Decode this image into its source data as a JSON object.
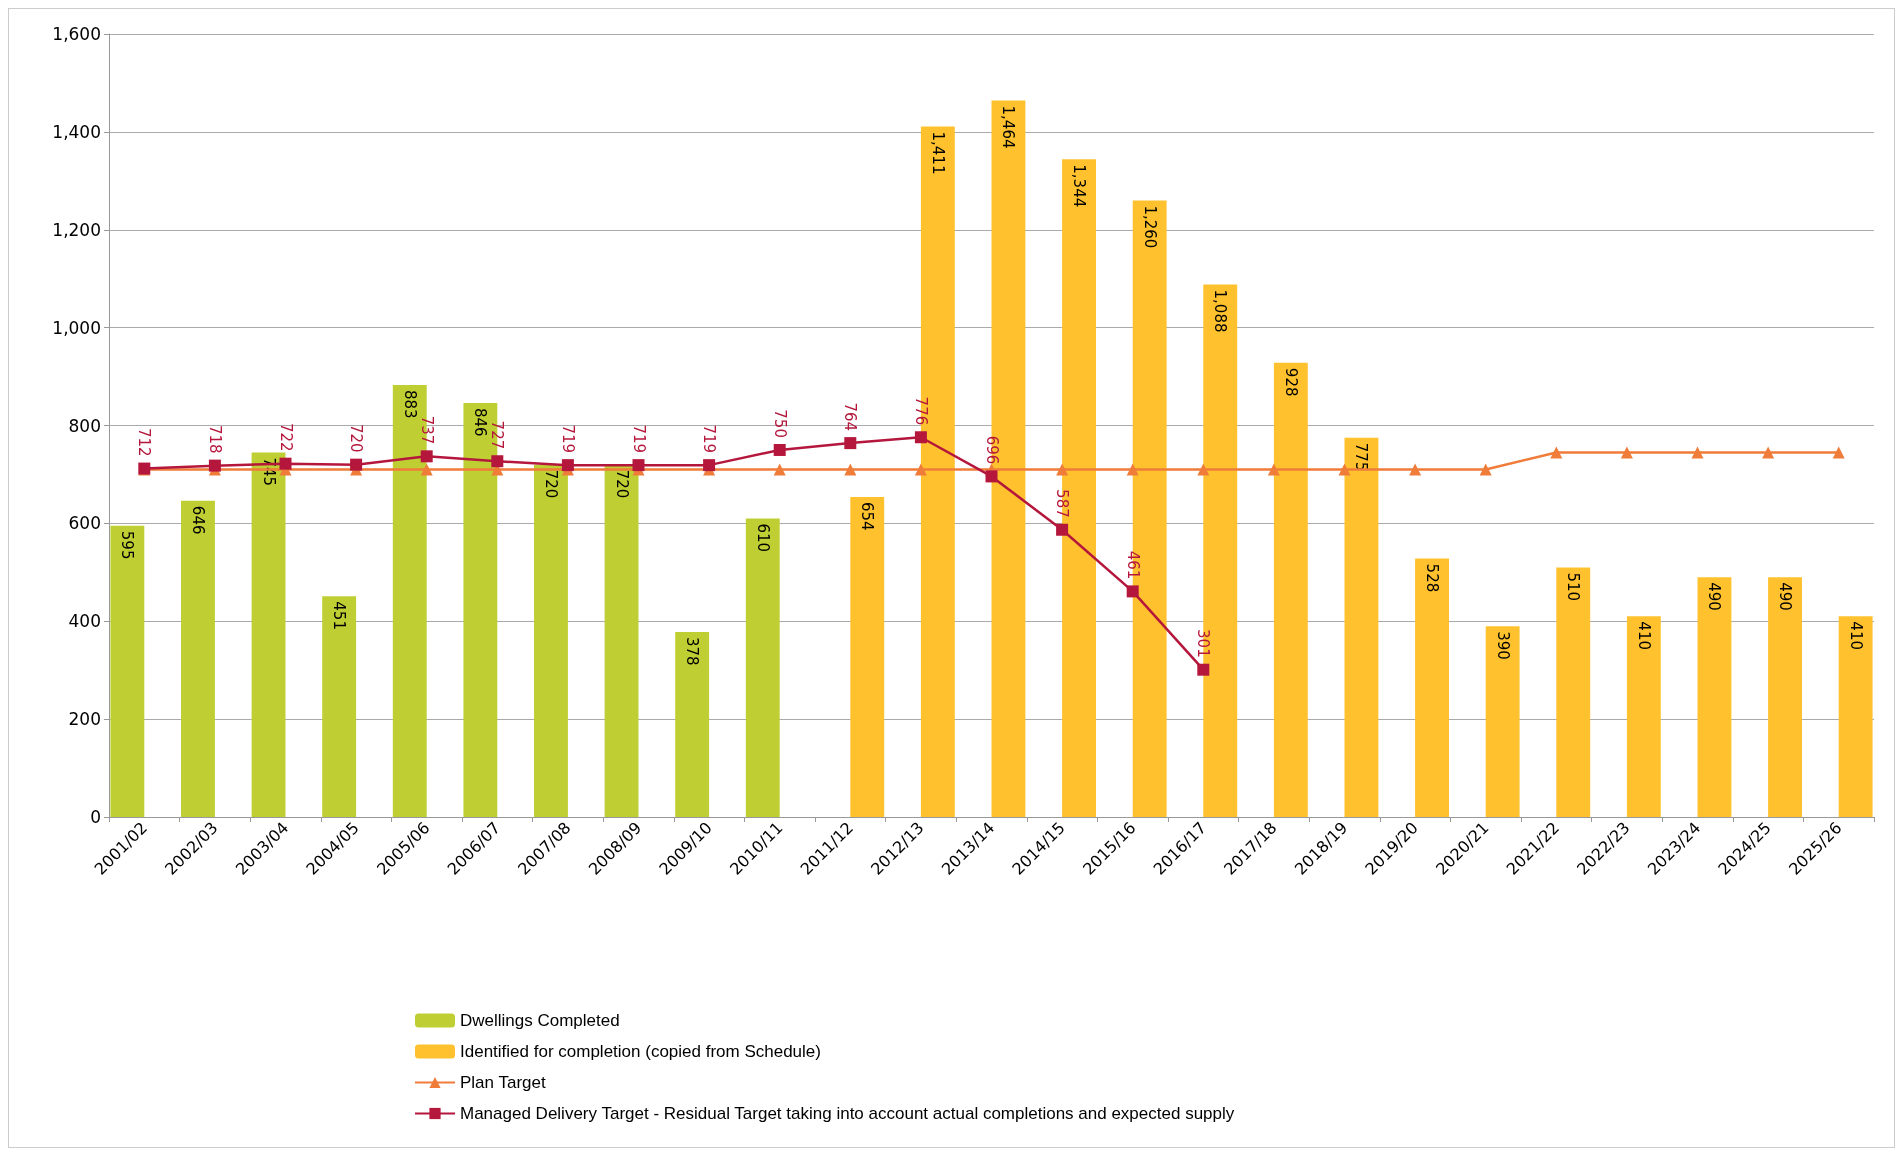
{
  "chart_data": {
    "type": "bar",
    "categories": [
      "2001/02",
      "2002/03",
      "2003/04",
      "2004/05",
      "2005/06",
      "2006/07",
      "2007/08",
      "2008/09",
      "2009/10",
      "2010/11",
      "2011/12",
      "2012/13",
      "2013/14",
      "2014/15",
      "2015/16",
      "2016/17",
      "2017/18",
      "2018/19",
      "2019/20",
      "2020/21",
      "2021/22",
      "2022/23",
      "2023/24",
      "2024/25",
      "2025/26"
    ],
    "series": [
      {
        "name": "Dwellings Completed",
        "color": "#bfcf33",
        "values": [
          595,
          646,
          745,
          451,
          883,
          846,
          720,
          720,
          378,
          610,
          null,
          null,
          null,
          null,
          null,
          null,
          null,
          null,
          null,
          null,
          null,
          null,
          null,
          null,
          null
        ],
        "value_labels": [
          "595",
          "646",
          "745",
          "451",
          "883",
          "846",
          "720",
          "720",
          "378",
          "610",
          null,
          null,
          null,
          null,
          null,
          null,
          null,
          null,
          null,
          null,
          null,
          null,
          null,
          null,
          null
        ]
      },
      {
        "name": "Identified for completion (copied from Schedule)",
        "color": "#ffc12e",
        "values": [
          null,
          null,
          null,
          null,
          null,
          null,
          null,
          null,
          null,
          null,
          654,
          1411,
          1464,
          1344,
          1260,
          1088,
          928,
          775,
          528,
          390,
          510,
          410,
          490,
          490,
          410
        ],
        "value_labels": [
          null,
          null,
          null,
          null,
          null,
          null,
          null,
          null,
          null,
          null,
          "654",
          "1,411",
          "1,464",
          "1,344",
          "1,260",
          "1,088",
          "928",
          "775",
          "528",
          "390",
          "510",
          "410",
          "490",
          "490",
          "410"
        ]
      },
      {
        "name": "Plan Target",
        "type": "line",
        "color": "#f07c3a",
        "marker": "triangle",
        "values": [
          710,
          710,
          710,
          710,
          710,
          710,
          710,
          710,
          710,
          710,
          710,
          710,
          710,
          710,
          710,
          710,
          710,
          710,
          710,
          710,
          745,
          745,
          745,
          745,
          745
        ]
      },
      {
        "name": "Managed Delivery Target - Residual Target taking into account actual completions and expected supply",
        "type": "line",
        "color": "#b5173c",
        "marker": "square",
        "values": [
          712,
          718,
          722,
          720,
          737,
          727,
          719,
          719,
          719,
          750,
          764,
          776,
          696,
          587,
          461,
          301,
          null,
          null,
          null,
          null,
          null,
          null,
          null,
          null,
          null
        ],
        "value_labels": [
          "712",
          "718",
          "722",
          "720",
          "737",
          "727",
          "719",
          "719",
          "719",
          "750",
          "764",
          "776",
          "696",
          "587",
          "461",
          "301",
          null,
          null,
          null,
          null,
          null,
          null,
          null,
          null,
          null
        ]
      }
    ],
    "ylim": [
      0,
      1600
    ],
    "yticks": [
      0,
      200,
      400,
      600,
      800,
      {
        "value": 1000,
        "label": "1,000"
      },
      {
        "value": 1200,
        "label": "1,200"
      },
      {
        "value": 1400,
        "label": "1,400"
      },
      {
        "value": 1600,
        "label": "1,600"
      }
    ],
    "grid": "y",
    "legend": "bottom"
  }
}
